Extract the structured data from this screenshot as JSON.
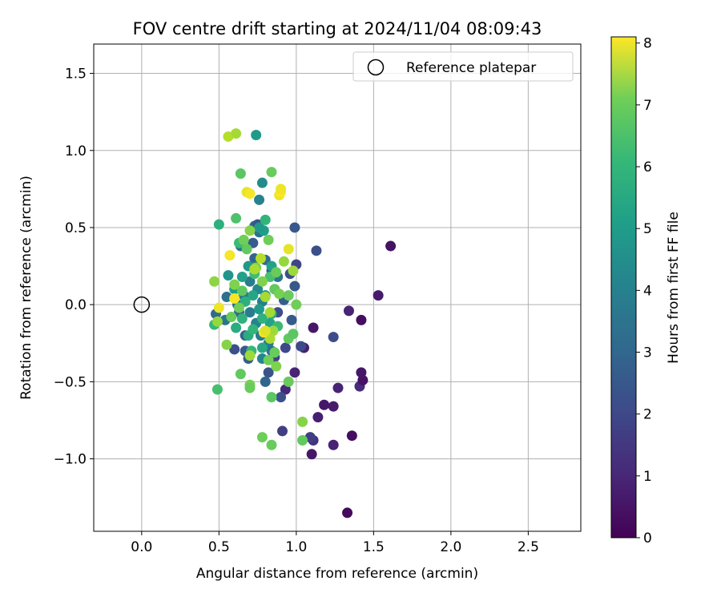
{
  "chart_data": {
    "type": "scatter",
    "title": "FOV centre drift starting at 2024/11/04 08:09:43",
    "xlabel": "Angular distance from reference (arcmin)",
    "ylabel": "Rotation from reference (arcmin)",
    "xlim": [
      -0.31,
      2.84
    ],
    "ylim": [
      -1.47,
      1.69
    ],
    "xticks": [
      0.0,
      0.5,
      1.0,
      1.5,
      2.0,
      2.5
    ],
    "xtick_labels": [
      "0.0",
      "0.5",
      "1.0",
      "1.5",
      "2.0",
      "2.5"
    ],
    "yticks": [
      -1.0,
      -0.5,
      0.0,
      0.5,
      1.0,
      1.5
    ],
    "ytick_labels": [
      "−1.0",
      "−0.5",
      "0.0",
      "0.5",
      "1.0",
      "1.5"
    ],
    "grid": true,
    "legend": {
      "position": "upper right",
      "label": "Reference platepar"
    },
    "reference_point": {
      "x": 0.0,
      "y": 0.0
    },
    "colorbar": {
      "label": "Hours from first FF file",
      "colormap": "viridis",
      "range": [
        0,
        8.1
      ],
      "ticks": [
        0,
        1,
        2,
        3,
        4,
        5,
        6,
        7,
        8
      ],
      "tick_labels": [
        "0",
        "1",
        "2",
        "3",
        "4",
        "5",
        "6",
        "7",
        "8"
      ]
    },
    "points": [
      {
        "x": 1.33,
        "y": -1.35,
        "h": 0.2
      },
      {
        "x": 1.1,
        "y": -0.97,
        "h": 0.5
      },
      {
        "x": 1.24,
        "y": -0.91,
        "h": 0.8
      },
      {
        "x": 1.36,
        "y": -0.85,
        "h": 0.3
      },
      {
        "x": 1.24,
        "y": -0.66,
        "h": 0.6
      },
      {
        "x": 1.18,
        "y": -0.65,
        "h": 0.5
      },
      {
        "x": 1.14,
        "y": -0.73,
        "h": 0.7
      },
      {
        "x": 1.11,
        "y": -0.88,
        "h": 1.2
      },
      {
        "x": 1.09,
        "y": -0.86,
        "h": 1.5
      },
      {
        "x": 1.41,
        "y": -0.53,
        "h": 1.0
      },
      {
        "x": 1.43,
        "y": -0.49,
        "h": 0.4
      },
      {
        "x": 1.42,
        "y": -0.44,
        "h": 0.5
      },
      {
        "x": 1.27,
        "y": -0.54,
        "h": 0.8
      },
      {
        "x": 1.42,
        "y": -0.1,
        "h": 0.3
      },
      {
        "x": 1.34,
        "y": -0.04,
        "h": 0.8
      },
      {
        "x": 1.53,
        "y": 0.06,
        "h": 0.6
      },
      {
        "x": 1.61,
        "y": 0.38,
        "h": 0.4
      },
      {
        "x": 1.11,
        "y": -0.15,
        "h": 0.5
      },
      {
        "x": 1.05,
        "y": -0.28,
        "h": 0.7
      },
      {
        "x": 1.03,
        "y": -0.27,
        "h": 1.8
      },
      {
        "x": 1.24,
        "y": -0.21,
        "h": 1.9
      },
      {
        "x": 0.99,
        "y": -0.44,
        "h": 0.8
      },
      {
        "x": 0.93,
        "y": -0.55,
        "h": 0.9
      },
      {
        "x": 0.9,
        "y": -0.6,
        "h": 2.0
      },
      {
        "x": 0.91,
        "y": -0.82,
        "h": 1.5
      },
      {
        "x": 1.13,
        "y": 0.35,
        "h": 2.0
      },
      {
        "x": 0.99,
        "y": 0.5,
        "h": 2.2
      },
      {
        "x": 0.86,
        "y": -0.34,
        "h": 1.6
      },
      {
        "x": 0.82,
        "y": -0.44,
        "h": 2.1
      },
      {
        "x": 0.8,
        "y": -0.5,
        "h": 2.6
      },
      {
        "x": 0.93,
        "y": -0.28,
        "h": 1.8
      },
      {
        "x": 0.96,
        "y": 0.2,
        "h": 2.0
      },
      {
        "x": 1.0,
        "y": 0.26,
        "h": 1.7
      },
      {
        "x": 0.99,
        "y": 0.12,
        "h": 2.2
      },
      {
        "x": 0.92,
        "y": 0.03,
        "h": 2.4
      },
      {
        "x": 0.88,
        "y": -0.05,
        "h": 1.9
      },
      {
        "x": 0.97,
        "y": -0.1,
        "h": 2.3
      },
      {
        "x": 0.84,
        "y": 0.22,
        "h": 2.5
      },
      {
        "x": 0.8,
        "y": 0.29,
        "h": 2.8
      },
      {
        "x": 0.76,
        "y": 0.47,
        "h": 3.0
      },
      {
        "x": 0.73,
        "y": 0.51,
        "h": 2.7
      },
      {
        "x": 0.75,
        "y": 0.52,
        "h": 2.2
      },
      {
        "x": 0.72,
        "y": 0.4,
        "h": 2.4
      },
      {
        "x": 0.64,
        "y": 0.38,
        "h": 2.9
      },
      {
        "x": 0.73,
        "y": 0.3,
        "h": 2.6
      },
      {
        "x": 0.6,
        "y": -0.29,
        "h": 2.0
      },
      {
        "x": 0.67,
        "y": -0.3,
        "h": 2.3
      },
      {
        "x": 0.69,
        "y": -0.35,
        "h": 2.4
      },
      {
        "x": 0.67,
        "y": -0.2,
        "h": 2.5
      },
      {
        "x": 0.63,
        "y": -0.05,
        "h": 2.6
      },
      {
        "x": 0.62,
        "y": 0.0,
        "h": 2.7
      },
      {
        "x": 0.55,
        "y": 0.05,
        "h": 3.0
      },
      {
        "x": 0.48,
        "y": -0.06,
        "h": 2.8
      },
      {
        "x": 0.54,
        "y": -0.1,
        "h": 3.1
      },
      {
        "x": 0.66,
        "y": 0.06,
        "h": 3.2
      },
      {
        "x": 0.7,
        "y": -0.05,
        "h": 3.4
      },
      {
        "x": 0.74,
        "y": -0.12,
        "h": 3.6
      },
      {
        "x": 0.77,
        "y": -0.2,
        "h": 3.3
      },
      {
        "x": 0.82,
        "y": -0.25,
        "h": 3.5
      },
      {
        "x": 0.84,
        "y": -0.3,
        "h": 3.0
      },
      {
        "x": 0.78,
        "y": -0.35,
        "h": 3.7
      },
      {
        "x": 0.7,
        "y": 0.15,
        "h": 3.4
      },
      {
        "x": 0.75,
        "y": 0.1,
        "h": 3.8
      },
      {
        "x": 0.78,
        "y": 0.02,
        "h": 3.5
      },
      {
        "x": 0.86,
        "y": 0.1,
        "h": 3.6
      },
      {
        "x": 0.88,
        "y": 0.18,
        "h": 3.1
      },
      {
        "x": 0.76,
        "y": 0.68,
        "h": 3.6
      },
      {
        "x": 0.78,
        "y": 0.79,
        "h": 3.9
      },
      {
        "x": 0.74,
        "y": 1.1,
        "h": 4.4
      },
      {
        "x": 0.56,
        "y": 0.19,
        "h": 4.2
      },
      {
        "x": 0.6,
        "y": 0.1,
        "h": 4.5
      },
      {
        "x": 0.65,
        "y": 0.18,
        "h": 4.6
      },
      {
        "x": 0.69,
        "y": 0.25,
        "h": 4.3
      },
      {
        "x": 0.72,
        "y": 0.06,
        "h": 4.8
      },
      {
        "x": 0.76,
        "y": -0.03,
        "h": 4.4
      },
      {
        "x": 0.8,
        "y": 0.06,
        "h": 4.1
      },
      {
        "x": 0.83,
        "y": -0.12,
        "h": 4.7
      },
      {
        "x": 0.78,
        "y": -0.28,
        "h": 4.9
      },
      {
        "x": 0.79,
        "y": 0.48,
        "h": 4.5
      },
      {
        "x": 0.76,
        "y": 0.5,
        "h": 4.3
      },
      {
        "x": 0.84,
        "y": 0.25,
        "h": 4.6
      },
      {
        "x": 0.61,
        "y": -0.15,
        "h": 5.0
      },
      {
        "x": 0.65,
        "y": -0.09,
        "h": 5.2
      },
      {
        "x": 0.69,
        "y": -0.2,
        "h": 5.0
      },
      {
        "x": 0.72,
        "y": -0.16,
        "h": 5.3
      },
      {
        "x": 0.67,
        "y": 0.02,
        "h": 5.1
      },
      {
        "x": 0.71,
        "y": -0.3,
        "h": 5.4
      },
      {
        "x": 0.78,
        "y": -0.09,
        "h": 5.2
      },
      {
        "x": 0.84,
        "y": -0.06,
        "h": 5.0
      },
      {
        "x": 0.88,
        "y": -0.14,
        "h": 5.5
      },
      {
        "x": 0.47,
        "y": -0.13,
        "h": 5.4
      },
      {
        "x": 0.5,
        "y": 0.52,
        "h": 5.1
      },
      {
        "x": 0.8,
        "y": 0.55,
        "h": 5.3
      },
      {
        "x": 0.73,
        "y": 0.2,
        "h": 5.6
      },
      {
        "x": 0.63,
        "y": 0.4,
        "h": 5.5
      },
      {
        "x": 0.83,
        "y": 0.18,
        "h": 5.7
      },
      {
        "x": 0.84,
        "y": 0.86,
        "h": 6.2
      },
      {
        "x": 0.64,
        "y": 0.85,
        "h": 6.0
      },
      {
        "x": 0.61,
        "y": 0.56,
        "h": 5.8
      },
      {
        "x": 0.66,
        "y": 0.42,
        "h": 6.3
      },
      {
        "x": 0.7,
        "y": 0.48,
        "h": 6.6
      },
      {
        "x": 0.68,
        "y": 0.36,
        "h": 6.1
      },
      {
        "x": 0.82,
        "y": 0.42,
        "h": 6.3
      },
      {
        "x": 0.87,
        "y": 0.21,
        "h": 6.2
      },
      {
        "x": 0.74,
        "y": 0.24,
        "h": 6.4
      },
      {
        "x": 0.78,
        "y": 0.15,
        "h": 6.5
      },
      {
        "x": 0.86,
        "y": 0.1,
        "h": 6.1
      },
      {
        "x": 0.89,
        "y": 0.07,
        "h": 6.4
      },
      {
        "x": 0.95,
        "y": 0.06,
        "h": 6.2
      },
      {
        "x": 1.0,
        "y": 0.0,
        "h": 6.3
      },
      {
        "x": 0.95,
        "y": -0.22,
        "h": 6.1
      },
      {
        "x": 0.98,
        "y": -0.19,
        "h": 6.0
      },
      {
        "x": 0.86,
        "y": -0.31,
        "h": 6.2
      },
      {
        "x": 0.82,
        "y": -0.36,
        "h": 6.3
      },
      {
        "x": 0.87,
        "y": -0.4,
        "h": 6.5
      },
      {
        "x": 0.95,
        "y": -0.5,
        "h": 6.2
      },
      {
        "x": 0.84,
        "y": -0.6,
        "h": 6.0
      },
      {
        "x": 0.64,
        "y": -0.45,
        "h": 6.1
      },
      {
        "x": 0.7,
        "y": -0.52,
        "h": 6.4
      },
      {
        "x": 0.7,
        "y": -0.54,
        "h": 6.2
      },
      {
        "x": 0.55,
        "y": -0.26,
        "h": 6.6
      },
      {
        "x": 0.58,
        "y": -0.08,
        "h": 6.2
      },
      {
        "x": 0.63,
        "y": -0.02,
        "h": 6.3
      },
      {
        "x": 0.65,
        "y": 0.09,
        "h": 6.1
      },
      {
        "x": 0.6,
        "y": 0.13,
        "h": 6.5
      },
      {
        "x": 0.47,
        "y": 0.15,
        "h": 6.7
      },
      {
        "x": 0.49,
        "y": -0.55,
        "h": 5.7
      },
      {
        "x": 0.78,
        "y": -0.86,
        "h": 6.3
      },
      {
        "x": 0.84,
        "y": -0.91,
        "h": 6.2
      },
      {
        "x": 1.04,
        "y": -0.88,
        "h": 6.1
      },
      {
        "x": 1.04,
        "y": -0.76,
        "h": 6.6
      },
      {
        "x": 0.92,
        "y": 0.28,
        "h": 6.8
      },
      {
        "x": 0.98,
        "y": 0.22,
        "h": 6.9
      },
      {
        "x": 0.8,
        "y": 0.05,
        "h": 7.0
      },
      {
        "x": 0.7,
        "y": -0.33,
        "h": 6.9
      },
      {
        "x": 0.49,
        "y": -0.11,
        "h": 6.8
      },
      {
        "x": 0.56,
        "y": 1.09,
        "h": 7.2
      },
      {
        "x": 0.61,
        "y": 1.11,
        "h": 7.0
      },
      {
        "x": 0.73,
        "y": 0.23,
        "h": 7.1
      },
      {
        "x": 0.77,
        "y": 0.3,
        "h": 7.2
      },
      {
        "x": 0.83,
        "y": -0.05,
        "h": 7.0
      },
      {
        "x": 0.85,
        "y": -0.17,
        "h": 6.9
      },
      {
        "x": 0.83,
        "y": -0.22,
        "h": 7.1
      },
      {
        "x": 0.68,
        "y": 0.73,
        "h": 7.8
      },
      {
        "x": 0.7,
        "y": 0.72,
        "h": 8.0
      },
      {
        "x": 0.89,
        "y": 0.71,
        "h": 7.9
      },
      {
        "x": 0.9,
        "y": 0.73,
        "h": 8.1
      },
      {
        "x": 0.9,
        "y": 0.75,
        "h": 7.9
      },
      {
        "x": 0.95,
        "y": 0.36,
        "h": 7.8
      },
      {
        "x": 0.57,
        "y": 0.32,
        "h": 8.0
      },
      {
        "x": 0.5,
        "y": -0.02,
        "h": 7.9
      },
      {
        "x": 0.6,
        "y": 0.04,
        "h": 8.0
      },
      {
        "x": 0.79,
        "y": -0.18,
        "h": 8.0
      },
      {
        "x": 0.8,
        "y": -0.17,
        "h": 7.7
      }
    ]
  },
  "colors": {
    "axis": "#000000",
    "grid": "#b0b0b0",
    "legend_border": "#cccccc"
  }
}
